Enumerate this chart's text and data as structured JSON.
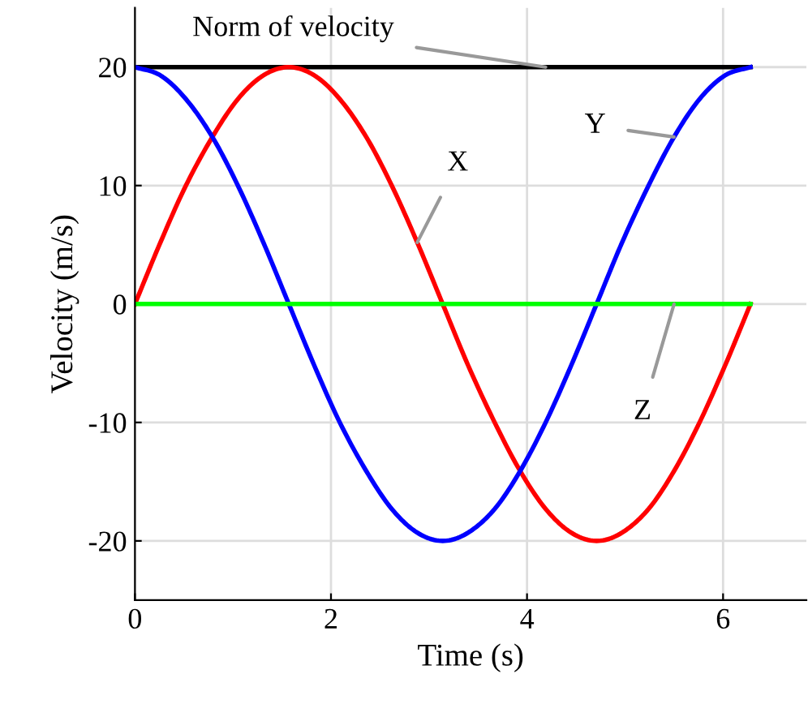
{
  "chart_data": {
    "type": "line",
    "xlabel": "Time (s)",
    "ylabel": "Velocity (m/s)",
    "xlim": [
      0,
      6.85
    ],
    "ylim": [
      -25,
      25
    ],
    "xticks": [
      0,
      2,
      4,
      6
    ],
    "yticks": [
      -20,
      -10,
      0,
      10,
      20
    ],
    "grid": true,
    "marker": "none",
    "line_style": "solid",
    "series": [
      {
        "color": "#000000",
        "x": [
          0,
          6.28
        ],
        "values": [
          20,
          20
        ]
      },
      {
        "color": "#ff0000",
        "x": [
          0,
          0.26,
          0.52,
          0.79,
          1.05,
          1.31,
          1.57,
          1.83,
          2.09,
          2.36,
          2.62,
          2.88,
          3.14,
          3.4,
          3.67,
          3.93,
          4.19,
          4.45,
          4.71,
          4.97,
          5.24,
          5.5,
          5.76,
          6.02,
          6.28
        ],
        "values": [
          0,
          5.2,
          10,
          14.1,
          17.3,
          19.3,
          20,
          19.3,
          17.3,
          14.1,
          10,
          5.2,
          0,
          -5.2,
          -10,
          -14.1,
          -17.3,
          -19.3,
          -20,
          -19.3,
          -17.3,
          -14.1,
          -10,
          -5.2,
          0
        ]
      },
      {
        "color": "#0000ff",
        "x": [
          0,
          0.26,
          0.52,
          0.79,
          1.05,
          1.31,
          1.57,
          1.83,
          2.09,
          2.36,
          2.62,
          2.88,
          3.14,
          3.4,
          3.67,
          3.93,
          4.19,
          4.45,
          4.71,
          4.97,
          5.24,
          5.5,
          5.76,
          6.02,
          6.28
        ],
        "values": [
          20,
          19.3,
          17.3,
          14.1,
          10,
          5.2,
          0,
          -5.2,
          -10,
          -14.1,
          -17.3,
          -19.3,
          -20,
          -19.3,
          -17.3,
          -14.1,
          -10,
          -5.2,
          0,
          5.2,
          10,
          14.1,
          17.3,
          19.3,
          20
        ]
      },
      {
        "color": "#00ff00",
        "x": [
          0,
          6.28
        ],
        "values": [
          0,
          0
        ]
      }
    ],
    "annotations": [
      {
        "text": "Norm of velocity",
        "x": 4.19,
        "y": 20
      },
      {
        "text": "Y",
        "x": 5.5,
        "y": 14.1
      },
      {
        "text": "X",
        "x": 2.88,
        "y": 5.2
      },
      {
        "text": "Z",
        "x": 5.5,
        "y": 0
      }
    ]
  }
}
